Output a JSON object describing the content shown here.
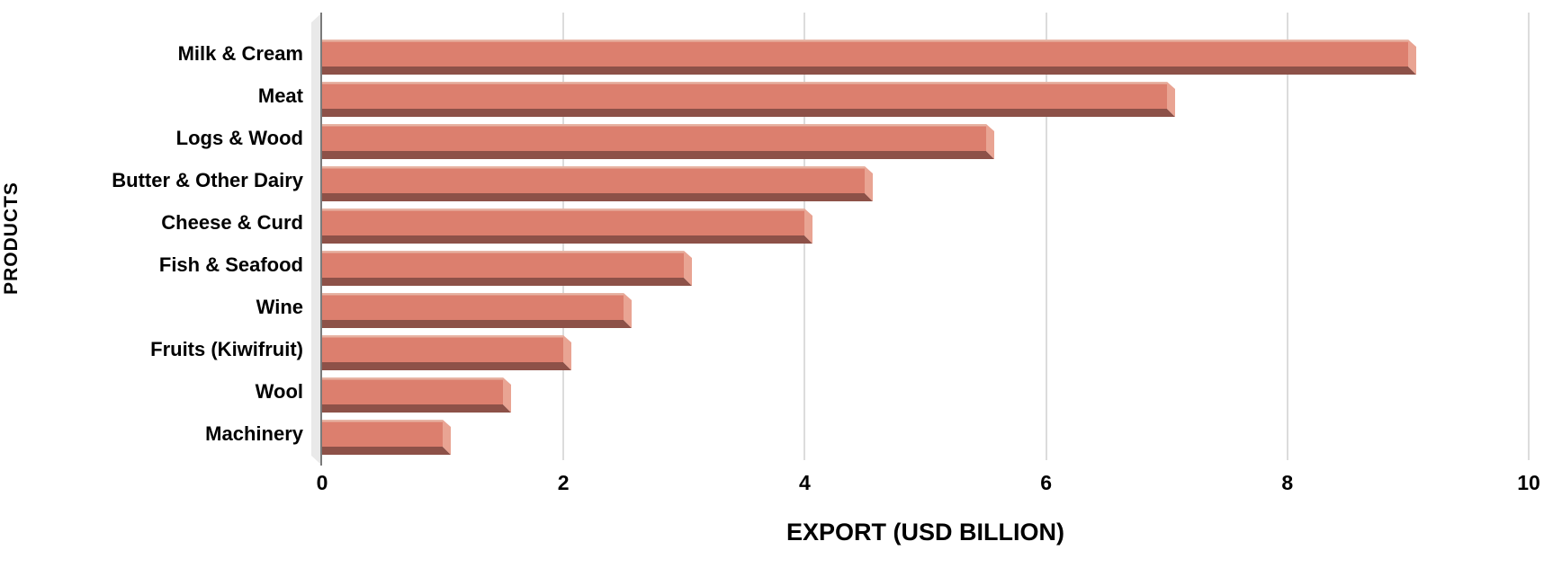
{
  "chart_data": {
    "type": "bar",
    "orientation": "horizontal",
    "title": "",
    "xlabel": "EXPORT (USD BILLION)",
    "ylabel": "PRODUCTS",
    "categories": [
      "Milk & Cream",
      "Meat",
      "Logs & Wood",
      "Butter & Other Dairy",
      "Cheese & Curd",
      "Fish & Seafood",
      "Wine",
      "Fruits (Kiwifruit)",
      "Wool",
      "Machinery"
    ],
    "values": [
      9,
      7,
      5.5,
      4.5,
      4,
      3,
      2.5,
      2,
      1.5,
      1
    ],
    "xlim": [
      0,
      10
    ],
    "xticks": [
      0,
      2,
      4,
      6,
      8,
      10
    ],
    "grid": true,
    "legend": false,
    "style": "3d-bevel",
    "colors": {
      "bar_front": "#dc7f6e",
      "bar_side": "#e9a493",
      "bar_bottom": "#8d5148",
      "bar_top_highlight": "#e7b3a3",
      "gridline": "#dcdcdc",
      "axis_wall": "#e9e9e9",
      "axis_line": "#7a7a7a",
      "text": "#000000",
      "background": "#ffffff"
    }
  }
}
